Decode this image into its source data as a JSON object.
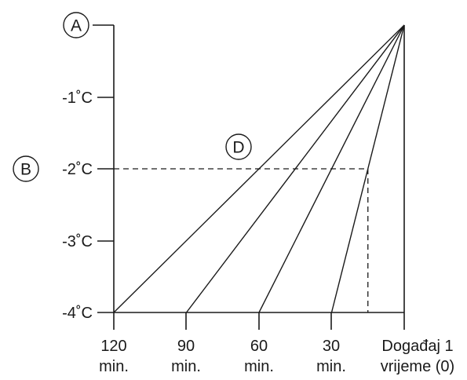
{
  "chart_data": {
    "type": "line",
    "y_ticks": [
      "-1˚C",
      "-2˚C",
      "-3˚C",
      "-4˚C"
    ],
    "x_ticks": [
      {
        "top": "120",
        "bottom": "min."
      },
      {
        "top": "90",
        "bottom": "min."
      },
      {
        "top": "60",
        "bottom": "min."
      },
      {
        "top": "30",
        "bottom": "min."
      },
      {
        "top": "Događaj 1",
        "bottom": "vrijeme (0)"
      }
    ],
    "series": [
      {
        "x": [
          120,
          0
        ],
        "y": [
          -4,
          0
        ]
      },
      {
        "x": [
          90,
          0
        ],
        "y": [
          -4,
          0
        ]
      },
      {
        "x": [
          60,
          0
        ],
        "y": [
          -4,
          0
        ]
      },
      {
        "x": [
          30,
          0
        ],
        "y": [
          -4,
          0
        ]
      }
    ],
    "reference": {
      "x": 15,
      "y": -2
    },
    "xlim": [
      120,
      0
    ],
    "ylim": [
      -4,
      0
    ]
  },
  "markers": {
    "a": "A",
    "b": "B",
    "d": "D"
  }
}
